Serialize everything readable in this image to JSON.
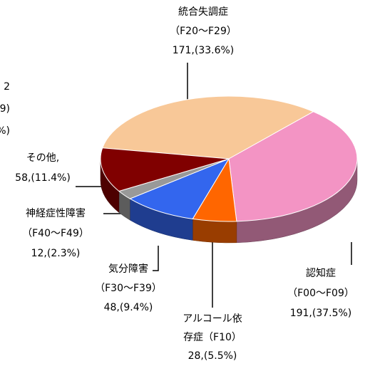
{
  "chart_data": {
    "type": "pie",
    "categories": [
      [
        "統合失調症",
        "（F20～F29）"
      ],
      [
        "認知症",
        "（F00～F09）"
      ],
      [
        "アルコール依",
        "存症（F10）"
      ],
      [
        "気分障害",
        "（F30～F39）"
      ],
      [
        "神経症性障害",
        "（F40～F49）"
      ],
      [
        "その他,"
      ]
    ],
    "values": [
      171,
      191,
      28,
      48,
      12,
      58
    ],
    "value_labels": [
      "171,(33.6%)",
      "191,(37.5%)",
      "28,(5.5%)",
      "48,(9.4%)",
      "12,(2.3%)",
      "58,(11.4%)"
    ],
    "colors": [
      "#f8c898",
      "#f394c4",
      "#ff6600",
      "#3366ee",
      "#999999",
      "#800000"
    ],
    "cropped_label": [
      "2",
      "9)",
      "%)"
    ]
  }
}
